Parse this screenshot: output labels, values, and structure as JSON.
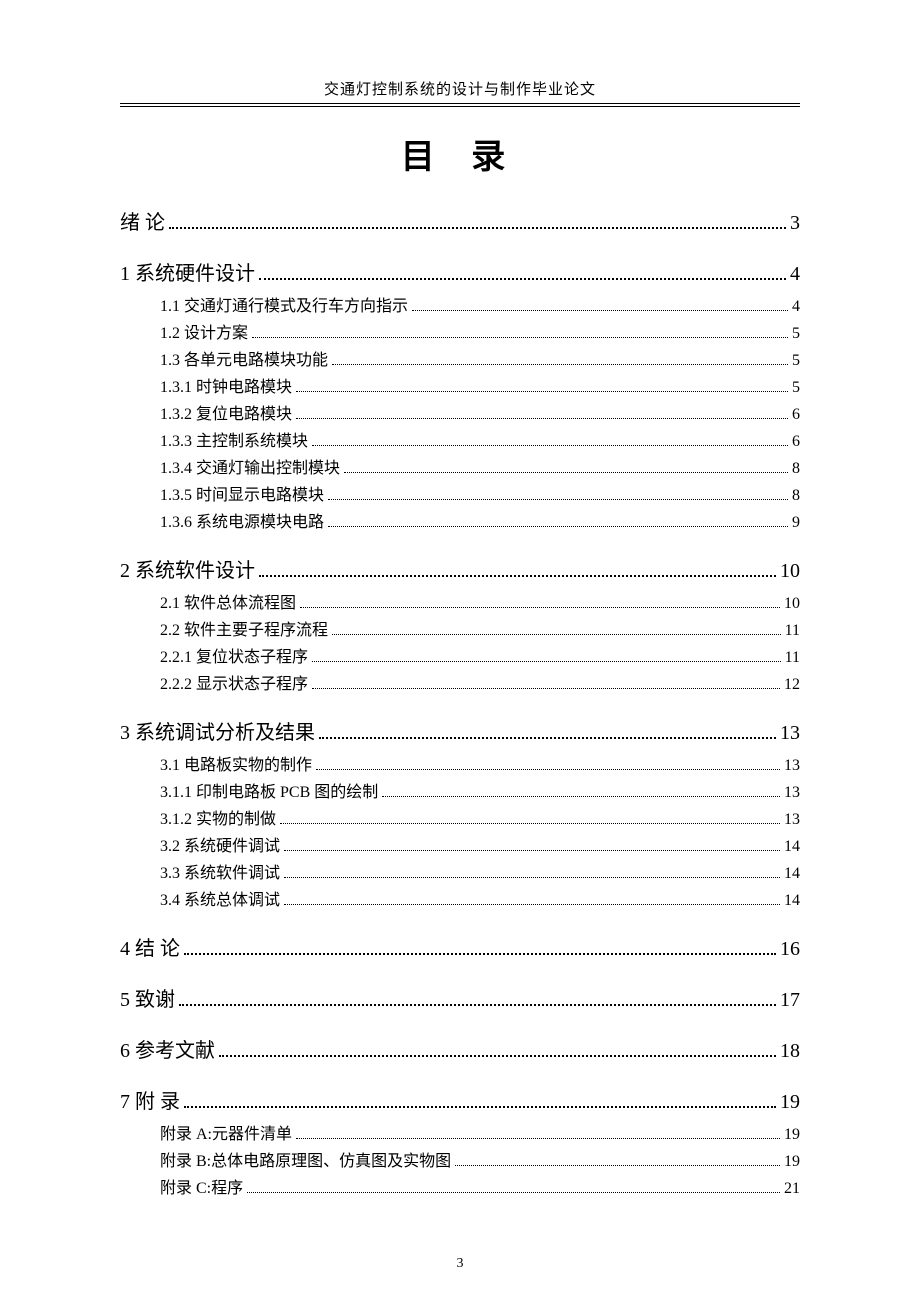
{
  "running_head": "交通灯控制系统的设计与制作毕业论文",
  "title": "目 录",
  "footer_page": "3",
  "toc": [
    {
      "level": 1,
      "label": "绪    论",
      "page": "3"
    },
    {
      "level": 1,
      "label": "1  系统硬件设计",
      "page": "4"
    },
    {
      "level": 2,
      "label": "1.1 交通灯通行模式及行车方向指示",
      "page": "4"
    },
    {
      "level": 2,
      "label": "1.2 设计方案",
      "page": "5"
    },
    {
      "level": 2,
      "label": "1.3 各单元电路模块功能",
      "page": "5"
    },
    {
      "level": 3,
      "label": "1.3.1 时钟电路模块",
      "page": "5"
    },
    {
      "level": 3,
      "label": "1.3.2 复位电路模块",
      "page": "6"
    },
    {
      "level": 3,
      "label": "1.3.3 主控制系统模块",
      "page": "6"
    },
    {
      "level": 3,
      "label": "1.3.4 交通灯输出控制模块",
      "page": "8"
    },
    {
      "level": 3,
      "label": "1.3.5 时间显示电路模块",
      "page": "8"
    },
    {
      "level": 3,
      "label": "1.3.6 系统电源模块电路",
      "page": "9"
    },
    {
      "level": 1,
      "label": "2  系统软件设计",
      "page": "10"
    },
    {
      "level": 2,
      "label": "2.1  软件总体流程图",
      "page": "10"
    },
    {
      "level": 2,
      "label": "2.2  软件主要子程序流程",
      "page": "11"
    },
    {
      "level": 3,
      "label": "2.2.1 复位状态子程序",
      "page": "11"
    },
    {
      "level": 3,
      "label": "2.2.2 显示状态子程序",
      "page": "12"
    },
    {
      "level": 1,
      "label": "3  系统调试分析及结果",
      "page": "13"
    },
    {
      "level": 2,
      "label": "3.1    电路板实物的制作",
      "page": "13"
    },
    {
      "level": 3,
      "label": "3.1.1 印制电路板 PCB 图的绘制",
      "page": "13"
    },
    {
      "level": 3,
      "label": "3.1.2 实物的制做",
      "page": "13"
    },
    {
      "level": 2,
      "label": "3.2  系统硬件调试",
      "page": "14"
    },
    {
      "level": 2,
      "label": "3.3  系统软件调试",
      "page": "14"
    },
    {
      "level": 2,
      "label": "3.4  系统总体调试",
      "page": "14"
    },
    {
      "level": 1,
      "label": "4 结    论",
      "page": "16"
    },
    {
      "level": 1,
      "label": "5  致谢",
      "page": "17"
    },
    {
      "level": 1,
      "label": "6 参考文献",
      "page": "18"
    },
    {
      "level": 1,
      "label": "7 附    录",
      "page": "19"
    },
    {
      "level": 2,
      "label": "附录 A:元器件清单",
      "page": "19"
    },
    {
      "level": 2,
      "label": "附录 B:总体电路原理图、仿真图及实物图",
      "page": "19"
    },
    {
      "level": 2,
      "label": "附录 C:程序",
      "page": "21"
    }
  ]
}
